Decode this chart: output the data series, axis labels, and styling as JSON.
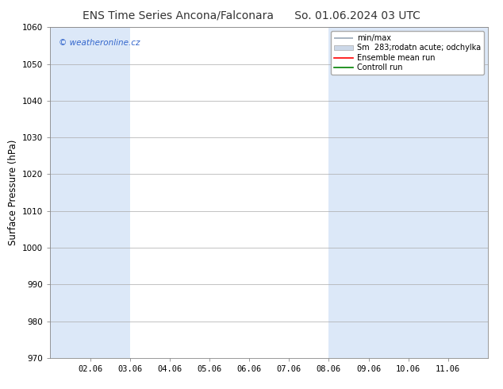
{
  "title_left": "ENS Time Series Ancona/Falconara",
  "title_right": "So. 01.06.2024 03 UTC",
  "ylabel": "Surface Pressure (hPa)",
  "ylim": [
    970,
    1060
  ],
  "yticks": [
    970,
    980,
    990,
    1000,
    1010,
    1020,
    1030,
    1040,
    1050,
    1060
  ],
  "x_labels": [
    "02.06",
    "03.06",
    "04.06",
    "05.06",
    "06.06",
    "07.06",
    "08.06",
    "09.06",
    "10.06",
    "11.06"
  ],
  "x_positions": [
    1,
    2,
    3,
    4,
    5,
    6,
    7,
    8,
    9,
    10
  ],
  "x_min": 0.0,
  "x_max": 11.0,
  "watermark": "© weatheronline.cz",
  "watermark_color": "#3366cc",
  "legend_entries": [
    "min/max",
    "Sm  283;rodatn acute; odchylka",
    "Ensemble mean run",
    "Controll run"
  ],
  "legend_colors": [
    "#9aa8b8",
    "#ccd8e8",
    "#ff0000",
    "#008000"
  ],
  "shaded_bands_color": "#dce8f8",
  "shaded_ranges": [
    [
      0.0,
      2.0
    ],
    [
      7.5,
      11.0
    ]
  ],
  "bg_color": "#ffffff",
  "title_fontsize": 10,
  "tick_fontsize": 7.5,
  "ylabel_fontsize": 8.5
}
